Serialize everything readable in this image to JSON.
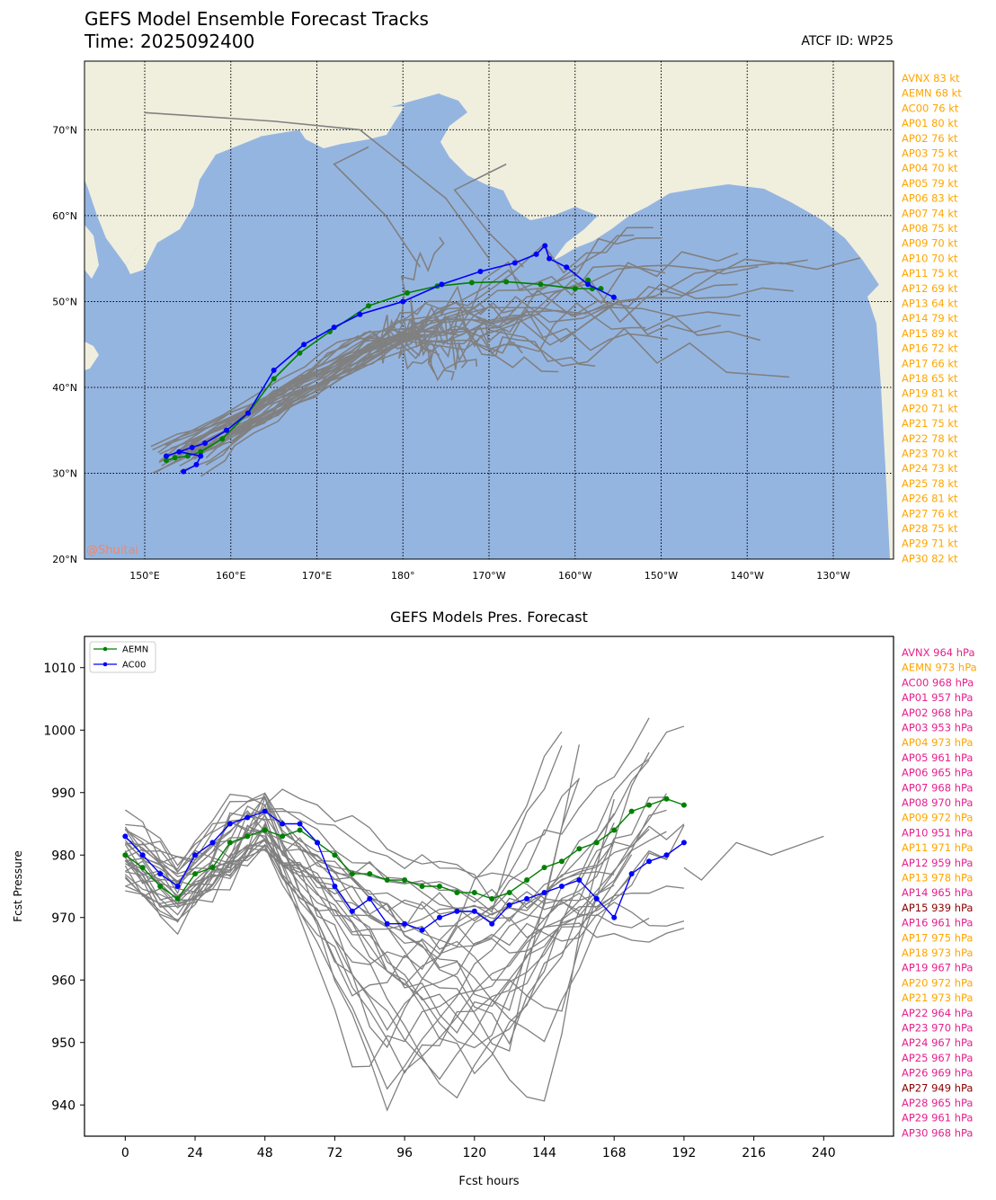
{
  "header": {
    "title": "GEFS Model Ensemble Forecast Tracks",
    "time_label": "Time: 2025092400",
    "atcf_label": "ATCF ID: WP25"
  },
  "map": {
    "watermark": "@Shuitai",
    "lon_ticks": [
      "150°E",
      "160°E",
      "170°E",
      "180°",
      "170°W",
      "160°W",
      "150°W",
      "140°W",
      "130°W"
    ],
    "lat_ticks": [
      "70°N",
      "60°N",
      "50°N",
      "40°N",
      "30°N",
      "20°N"
    ],
    "colors": {
      "ocean": "#95b5e1",
      "land": "#f0efde",
      "track": "#808080",
      "aemn": "#008000",
      "ac00": "#0000ff",
      "label": "#ffa500"
    }
  },
  "wind_labels": [
    "AVNX 83 kt",
    "AEMN 68 kt",
    "AC00 76 kt",
    "AP01 80 kt",
    "AP02 76 kt",
    "AP03 75 kt",
    "AP04 70 kt",
    "AP05 79 kt",
    "AP06 83 kt",
    "AP07 74 kt",
    "AP08 75 kt",
    "AP09 70 kt",
    "AP10 70 kt",
    "AP11 75 kt",
    "AP12 69 kt",
    "AP13 64 kt",
    "AP14 79 kt",
    "AP15 89 kt",
    "AP16 72 kt",
    "AP17 66 kt",
    "AP18 65 kt",
    "AP19 81 kt",
    "AP20 71 kt",
    "AP21 75 kt",
    "AP22 78 kt",
    "AP23 70 kt",
    "AP24 73 kt",
    "AP25 78 kt",
    "AP26 81 kt",
    "AP27 76 kt",
    "AP28 75 kt",
    "AP29 71 kt",
    "AP30 82 kt"
  ],
  "pressure_labels": [
    {
      "text": "AVNX 964 hPa",
      "color": "#e6208c"
    },
    {
      "text": "AEMN 973 hPa",
      "color": "#ffa500"
    },
    {
      "text": "AC00 968 hPa",
      "color": "#e6208c"
    },
    {
      "text": "AP01 957 hPa",
      "color": "#e6208c"
    },
    {
      "text": "AP02 968 hPa",
      "color": "#e6208c"
    },
    {
      "text": "AP03 953 hPa",
      "color": "#e6208c"
    },
    {
      "text": "AP04 973 hPa",
      "color": "#ffa500"
    },
    {
      "text": "AP05 961 hPa",
      "color": "#e6208c"
    },
    {
      "text": "AP06 965 hPa",
      "color": "#e6208c"
    },
    {
      "text": "AP07 968 hPa",
      "color": "#e6208c"
    },
    {
      "text": "AP08 970 hPa",
      "color": "#e6208c"
    },
    {
      "text": "AP09 972 hPa",
      "color": "#ffa500"
    },
    {
      "text": "AP10 951 hPa",
      "color": "#e6208c"
    },
    {
      "text": "AP11 971 hPa",
      "color": "#ffa500"
    },
    {
      "text": "AP12 959 hPa",
      "color": "#e6208c"
    },
    {
      "text": "AP13 978 hPa",
      "color": "#ffa500"
    },
    {
      "text": "AP14 965 hPa",
      "color": "#e6208c"
    },
    {
      "text": "AP15 939 hPa",
      "color": "#8b0000"
    },
    {
      "text": "AP16 961 hPa",
      "color": "#e6208c"
    },
    {
      "text": "AP17 975 hPa",
      "color": "#ffa500"
    },
    {
      "text": "AP18 973 hPa",
      "color": "#ffa500"
    },
    {
      "text": "AP19 967 hPa",
      "color": "#e6208c"
    },
    {
      "text": "AP20 972 hPa",
      "color": "#ffa500"
    },
    {
      "text": "AP21 973 hPa",
      "color": "#ffa500"
    },
    {
      "text": "AP22 964 hPa",
      "color": "#e6208c"
    },
    {
      "text": "AP23 970 hPa",
      "color": "#e6208c"
    },
    {
      "text": "AP24 967 hPa",
      "color": "#e6208c"
    },
    {
      "text": "AP25 967 hPa",
      "color": "#e6208c"
    },
    {
      "text": "AP26 969 hPa",
      "color": "#e6208c"
    },
    {
      "text": "AP27 949 hPa",
      "color": "#8b0000"
    },
    {
      "text": "AP28 965 hPa",
      "color": "#e6208c"
    },
    {
      "text": "AP29 961 hPa",
      "color": "#e6208c"
    },
    {
      "text": "AP30 968 hPa",
      "color": "#e6208c"
    }
  ],
  "chart_data": [
    {
      "type": "line",
      "title": "GEFS Model Ensemble Forecast Tracks",
      "subtitle": "Time: 2025092400",
      "xlim": [
        143,
        237
      ],
      "ylim": [
        20,
        78
      ],
      "x_units": "longitude (degrees east, 0-360)",
      "y_units": "latitude (degrees north)",
      "grid": true,
      "series": [
        {
          "name": "AEMN",
          "color": "#008000",
          "lon": [
            152.5,
            153.5,
            155.0,
            156.5,
            159.0,
            162.0,
            165.0,
            168.0,
            171.5,
            176.0,
            180.5,
            184.0,
            188.0,
            192.0,
            196.0,
            200.0,
            203.0,
            202.0,
            201.5
          ],
          "lat": [
            31.5,
            31.8,
            32.0,
            32.5,
            34.0,
            37.0,
            41.0,
            44.0,
            46.5,
            49.5,
            51.0,
            51.8,
            52.2,
            52.3,
            52.0,
            51.5,
            51.5,
            51.5,
            52.5
          ]
        },
        {
          "name": "AC00",
          "color": "#0000ff",
          "lon": [
            154.5,
            156.0,
            156.5,
            154.0,
            152.5,
            155.5,
            157.0,
            159.5,
            162.0,
            165.0,
            168.5,
            172.0,
            175.0,
            180.0,
            184.5,
            189.0,
            193.0,
            195.5,
            196.5,
            197.0,
            199.0,
            201.5,
            204.5
          ],
          "lat": [
            30.2,
            31.0,
            32.0,
            32.5,
            32.0,
            33.0,
            33.5,
            35.0,
            37.0,
            42.0,
            45.0,
            47.0,
            48.5,
            50.0,
            52.0,
            53.5,
            54.5,
            55.5,
            56.5,
            55.0,
            54.0,
            52.0,
            50.5
          ]
        }
      ]
    },
    {
      "type": "line",
      "title": "GEFS Models Pres. Forecast",
      "xlabel": "Fcst hours",
      "ylabel": "Fcst Pressure",
      "xlim": [
        -14,
        264
      ],
      "ylim": [
        935,
        1015
      ],
      "xticks": [
        0,
        24,
        48,
        72,
        96,
        120,
        144,
        168,
        192,
        216,
        240
      ],
      "yticks": [
        940,
        950,
        960,
        970,
        980,
        990,
        1000,
        1010
      ],
      "legend": "top-left",
      "series": [
        {
          "name": "AEMN",
          "color": "#008000",
          "x": [
            0,
            6,
            12,
            18,
            24,
            30,
            36,
            42,
            48,
            54,
            60,
            66,
            72,
            78,
            84,
            90,
            96,
            102,
            108,
            114,
            120,
            126,
            132,
            138,
            144,
            150,
            156,
            162,
            168,
            174,
            180,
            186,
            192
          ],
          "values": [
            980,
            978,
            975,
            973,
            977,
            978,
            982,
            983,
            984,
            983,
            984,
            982,
            980,
            977,
            977,
            976,
            976,
            975,
            975,
            974,
            974,
            973,
            974,
            976,
            978,
            979,
            981,
            982,
            984,
            987,
            988,
            989,
            988
          ]
        },
        {
          "name": "AC00",
          "color": "#0000ff",
          "x": [
            0,
            6,
            12,
            18,
            24,
            30,
            36,
            42,
            48,
            54,
            60,
            66,
            72,
            78,
            84,
            90,
            96,
            102,
            108,
            114,
            120,
            126,
            132,
            138,
            144,
            150,
            156,
            162,
            168,
            174,
            180,
            186,
            192
          ],
          "values": [
            983,
            980,
            977,
            975,
            980,
            982,
            985,
            986,
            987,
            985,
            985,
            982,
            975,
            971,
            973,
            969,
            969,
            968,
            970,
            971,
            971,
            969,
            972,
            973,
            974,
            975,
            976,
            973,
            970,
            977,
            979,
            980,
            982
          ]
        }
      ]
    }
  ]
}
